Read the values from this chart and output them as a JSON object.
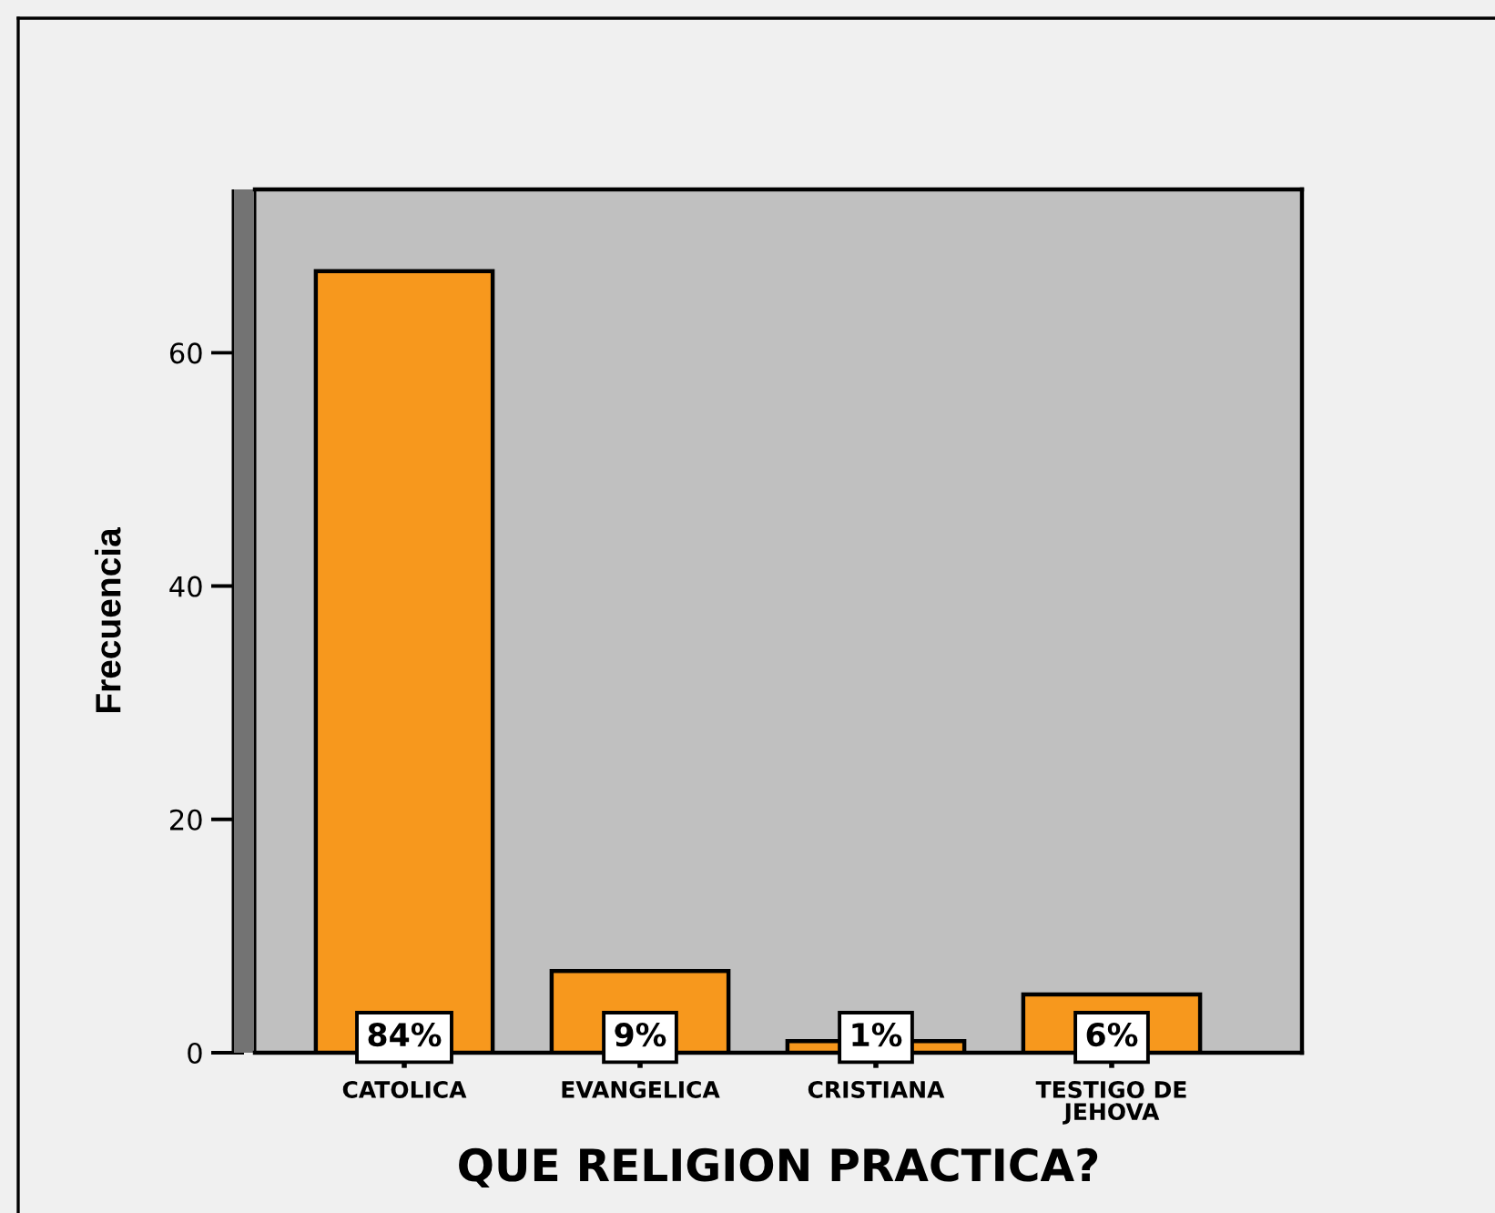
{
  "chart_data": {
    "type": "bar",
    "xlabel": "QUE RELIGION PRACTICA?",
    "ylabel": "Frecuencia",
    "categories": [
      "CATOLICA",
      "EVANGELICA",
      "CRISTIANA",
      "TESTIGO DE\nJEHOVA"
    ],
    "values": [
      67,
      7,
      1,
      5
    ],
    "color": "#f7981d",
    "annotations": [
      {
        "text": "84%",
        "x": "CATOLICA",
        "y": 0
      },
      {
        "text": "9%",
        "x": "EVANGELICA",
        "y": 0
      },
      {
        "text": "1%",
        "x": "CRISTIANA",
        "y": 0
      },
      {
        "text": "6%",
        "x": "TESTIGO DE\nJEHOVA",
        "y": 0
      }
    ],
    "ylim": [
      0,
      74
    ],
    "yticks": [
      0,
      20,
      40,
      60
    ]
  }
}
